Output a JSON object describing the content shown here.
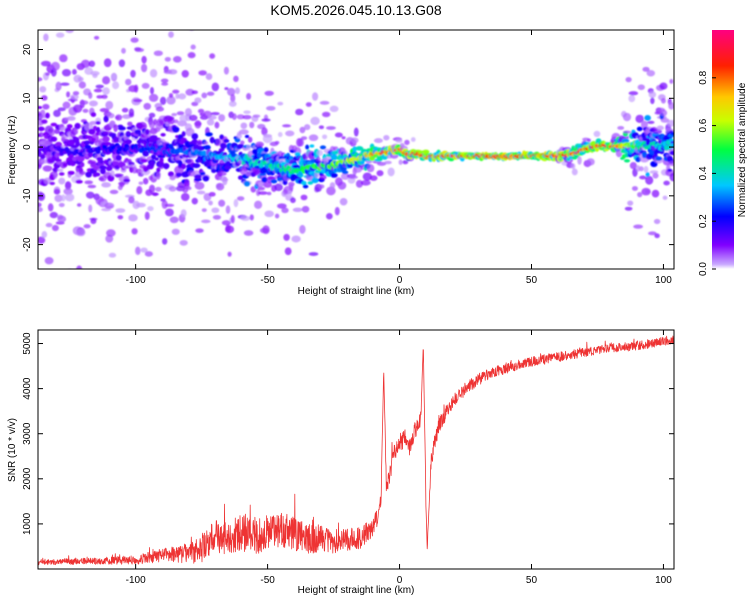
{
  "title": "KOM5.2026.045.10.13.G08",
  "chart_data": [
    {
      "type": "heatmap",
      "xlabel": "Height of straight line (km)",
      "ylabel": "Frequency (Hz)",
      "xlim": [
        -137,
        104
      ],
      "ylim": [
        -25,
        24
      ],
      "x_ticks": [
        -100,
        -50,
        0,
        50,
        100
      ],
      "y_ticks": [
        -20,
        -10,
        0,
        10,
        20
      ],
      "ridge": {
        "x": [
          -137,
          -120,
          -100,
          -80,
          -60,
          -50,
          -40,
          -30,
          -20,
          -10,
          -5,
          0,
          3,
          6,
          10,
          20,
          30,
          40,
          50,
          60,
          65,
          70,
          75,
          80,
          90,
          100,
          104
        ],
        "freq": [
          -0.5,
          -0.8,
          0.0,
          -1.0,
          -2.5,
          -3.5,
          -4.5,
          -4.0,
          -3.0,
          -1.5,
          -1.0,
          -0.5,
          -1.5,
          -1.2,
          -2.0,
          -1.8,
          -1.8,
          -2.0,
          -1.8,
          -1.8,
          -1.5,
          -0.5,
          0.3,
          0.2,
          0.3,
          0.4,
          0.4
        ],
        "amplitude": [
          0.15,
          0.2,
          0.25,
          0.3,
          0.4,
          0.45,
          0.5,
          0.55,
          0.65,
          0.8,
          0.85,
          0.9,
          0.85,
          0.9,
          0.9,
          0.92,
          0.95,
          0.95,
          0.95,
          0.9,
          0.88,
          0.85,
          0.9,
          0.92,
          0.5,
          0.4,
          0.4
        ]
      },
      "colorbar": {
        "label": "Normalized spectral amplitude",
        "range": [
          0.0,
          1.0
        ],
        "ticks": [
          0.0,
          0.2,
          0.4,
          0.6,
          0.8
        ],
        "tick_labels": [
          "0.0",
          "0.2",
          "0.4",
          "0.6",
          "0.8"
        ]
      }
    },
    {
      "type": "line",
      "xlabel": "Height of straight line (km)",
      "ylabel": "SNR (10 * v/v)",
      "xlim": [
        -137,
        104
      ],
      "ylim": [
        0,
        5300
      ],
      "x_ticks": [
        -100,
        -50,
        0,
        50,
        100
      ],
      "y_ticks": [
        1000,
        2000,
        3000,
        4000,
        5000
      ],
      "color": "#ee3333",
      "series": [
        {
          "name": "SNR",
          "x": [
            -137,
            -120,
            -100,
            -90,
            -80,
            -75,
            -72,
            -70,
            -68,
            -65,
            -60,
            -55,
            -50,
            -45,
            -40,
            -35,
            -30,
            -25,
            -20,
            -15,
            -10,
            -8,
            -7,
            -6,
            -5,
            -4,
            -3,
            -2,
            0,
            2,
            4,
            6,
            8,
            9,
            10,
            10.5,
            11,
            12,
            14,
            16,
            18,
            20,
            25,
            30,
            35,
            40,
            50,
            60,
            70,
            80,
            90,
            100,
            104
          ],
          "y": [
            150,
            170,
            200,
            300,
            350,
            420,
            600,
            800,
            650,
            700,
            800,
            700,
            800,
            850,
            800,
            650,
            700,
            600,
            650,
            700,
            900,
            1200,
            1600,
            4450,
            1800,
            2000,
            2300,
            2600,
            2800,
            2900,
            2700,
            3100,
            3300,
            5000,
            1500,
            400,
            1200,
            2400,
            3000,
            3300,
            3500,
            3700,
            4000,
            4200,
            4350,
            4450,
            4600,
            4700,
            4800,
            4900,
            4950,
            5050,
            5100
          ],
          "noise": [
            60,
            70,
            100,
            150,
            220,
            300,
            350,
            350,
            350,
            350,
            400,
            400,
            400,
            400,
            380,
            350,
            300,
            280,
            260,
            250,
            250,
            200,
            200,
            0,
            200,
            200,
            200,
            200,
            200,
            200,
            200,
            200,
            200,
            0,
            150,
            0,
            150,
            200,
            200,
            180,
            170,
            160,
            150,
            140,
            130,
            120,
            110,
            110,
            100,
            100,
            100,
            100,
            100
          ]
        }
      ]
    }
  ]
}
